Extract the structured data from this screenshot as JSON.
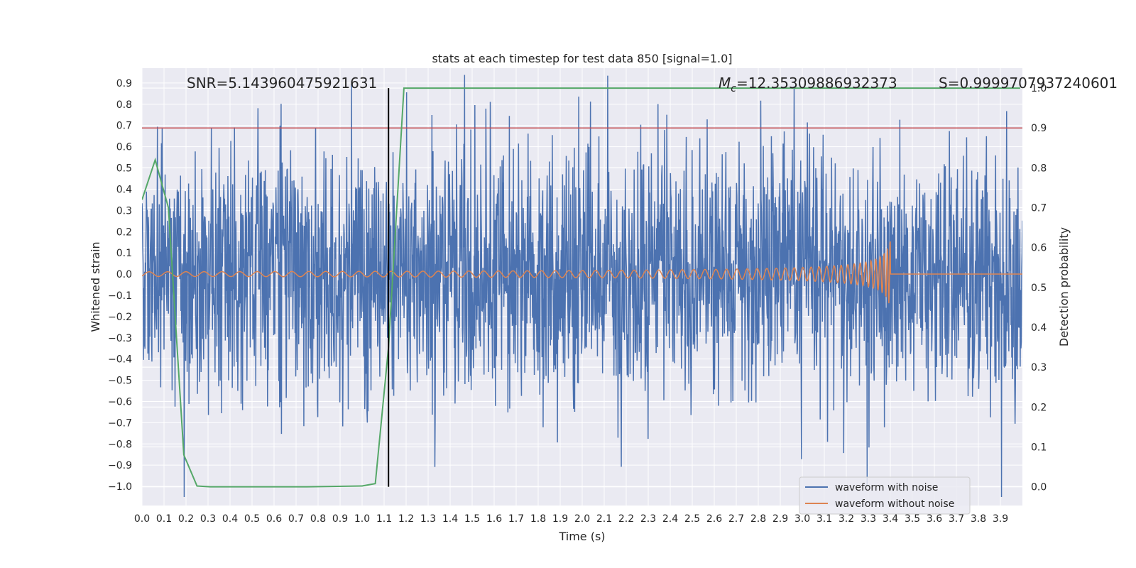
{
  "chart_data": {
    "type": "line",
    "title": "stats at each timestep for test data 850 [signal=1.0]",
    "xlabel": "Time (s)",
    "ylabel_left": "Whitened strain",
    "ylabel_right": "Detection probability",
    "xlim": [
      0.0,
      4.0
    ],
    "ylim_left": [
      -1.09,
      0.97
    ],
    "ylim_right": [
      -0.047,
      1.05
    ],
    "x_ticks": [
      "0.0",
      "0.1",
      "0.2",
      "0.3",
      "0.4",
      "0.5",
      "0.6",
      "0.7",
      "0.8",
      "0.9",
      "1.0",
      "1.1",
      "1.2",
      "1.3",
      "1.4",
      "1.5",
      "1.6",
      "1.7",
      "1.8",
      "1.9",
      "2.0",
      "2.1",
      "2.2",
      "2.3",
      "2.4",
      "2.5",
      "2.6",
      "2.7",
      "2.8",
      "2.9",
      "3.0",
      "3.1",
      "3.2",
      "3.3",
      "3.4",
      "3.5",
      "3.6",
      "3.7",
      "3.8",
      "3.9"
    ],
    "y_ticks_left": [
      "0.9",
      "0.8",
      "0.7",
      "0.6",
      "0.5",
      "0.4",
      "0.3",
      "0.2",
      "0.1",
      "0.0",
      "−0.1",
      "−0.2",
      "−0.3",
      "−0.4",
      "−0.5",
      "−0.6",
      "−0.7",
      "−0.8",
      "−0.9",
      "−1.0"
    ],
    "y_ticks_right": [
      "1.0",
      "0.9",
      "0.8",
      "0.7",
      "0.6",
      "0.5",
      "0.4",
      "0.3",
      "0.2",
      "0.1",
      "0.0"
    ],
    "annotations": {
      "snr": "SNR=5.143960475921631",
      "mc_symbol": "M",
      "mc_sub": "c",
      "mc_value": "=12.35309886932373",
      "s": "S=0.9999707937240601"
    },
    "threshold_probability": 0.9,
    "detection_time": 1.12,
    "merger_time": 3.4,
    "noise_amplitude": 0.3,
    "series": [
      {
        "name": "waveform with noise",
        "color": "#4c72b0",
        "axis": "left",
        "kind": "noise"
      },
      {
        "name": "waveform without noise",
        "color": "#dd8452",
        "axis": "left",
        "kind": "chirp"
      },
      {
        "name": "Detection probability",
        "color": "#55a868",
        "axis": "right",
        "x": [
          0.0,
          0.06,
          0.12,
          0.19,
          0.25,
          0.31,
          0.5,
          0.75,
          1.0,
          1.06,
          1.12,
          1.19,
          1.5,
          2.0,
          2.5,
          3.0,
          3.5,
          3.99
        ],
        "values": [
          0.72,
          0.82,
          0.7,
          0.08,
          0.002,
          0.0,
          0.0,
          0.0,
          0.002,
          0.008,
          0.35,
          1.0,
          1.0,
          1.0,
          1.0,
          1.0,
          1.0,
          1.0
        ]
      }
    ],
    "legend": {
      "position": "lower-right",
      "entries": [
        "waveform with noise",
        "waveform without noise"
      ]
    },
    "colors": {
      "background": "#eaeaf2",
      "grid": "#ffffff",
      "threshold": "#c44e52",
      "marker": "#000000"
    }
  }
}
